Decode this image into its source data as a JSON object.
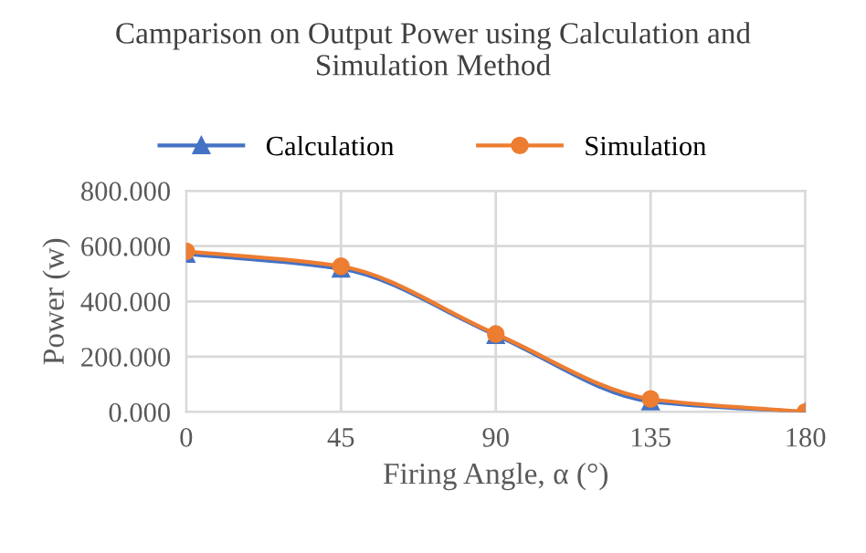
{
  "chart_data": {
    "type": "line",
    "title": "Camparison on Output Power using Calculation and\nSimulation Method",
    "xlabel": "Firing Angle, α (°)",
    "ylabel": "Power (w)",
    "x": [
      0,
      45,
      90,
      135,
      180
    ],
    "series": [
      {
        "name": "Calculation",
        "color": "#4472c4",
        "values": [
          572,
          518,
          278,
          38,
          0
        ],
        "marker": "triangle"
      },
      {
        "name": "Simulation",
        "color": "#ed7d31",
        "values": [
          581,
          527,
          282,
          47,
          0
        ],
        "marker": "circle"
      }
    ],
    "xlim": [
      0,
      180
    ],
    "xticks": [
      0,
      45,
      90,
      135,
      180
    ],
    "ylim": [
      0,
      800
    ],
    "yticks": [
      {
        "value": 0,
        "label": "0.000"
      },
      {
        "value": 200,
        "label": "200.000"
      },
      {
        "value": 400,
        "label": "400.000"
      },
      {
        "value": 600,
        "label": "600.000"
      },
      {
        "value": 800,
        "label": "800.000"
      }
    ],
    "grid": true,
    "legend": "top",
    "line_style": "solid"
  }
}
